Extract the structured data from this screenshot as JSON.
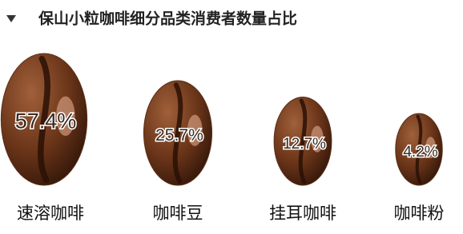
{
  "chart_data": {
    "type": "pictograph",
    "title": "保山小粒咖啡细分品类消费者数量占比",
    "categories": [
      "速溶咖啡",
      "咖啡豆",
      "挂耳咖啡",
      "咖啡粉"
    ],
    "values": [
      57.4,
      25.7,
      12.7,
      4.2
    ],
    "value_labels": [
      "57.4%",
      "25.7%",
      "12.7%",
      "4.2%"
    ],
    "color": "#5a2e17"
  }
}
